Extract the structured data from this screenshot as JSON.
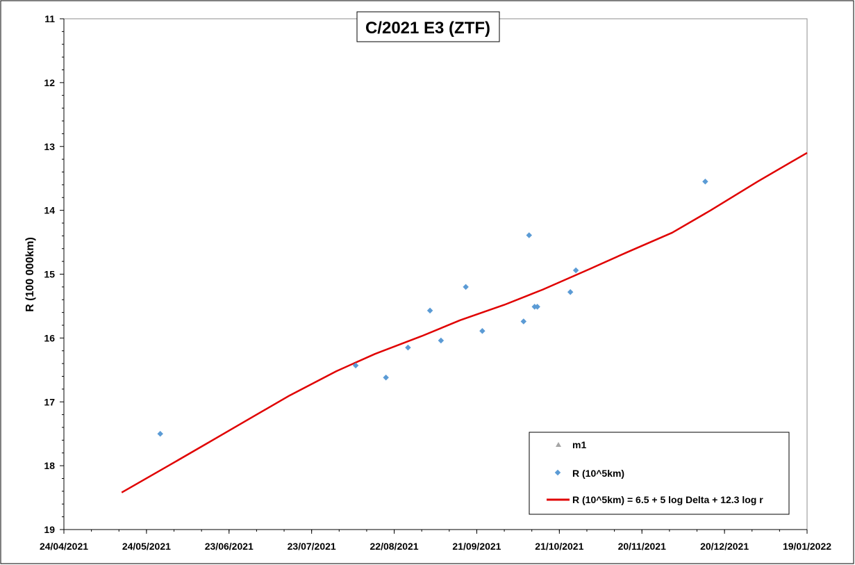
{
  "chart_data": {
    "type": "scatter",
    "title": "C/2021 E3 (ZTF)",
    "xlabel": "",
    "ylabel": "R (100 000km)",
    "y_inverted": true,
    "ylim": [
      11,
      19
    ],
    "yticks": [
      11,
      12,
      13,
      14,
      15,
      16,
      17,
      18,
      19
    ],
    "xlim": [
      "2021-04-24",
      "2022-01-19"
    ],
    "xticks": [
      "24/04/2021",
      "24/05/2021",
      "23/06/2021",
      "23/07/2021",
      "22/08/2021",
      "21/09/2021",
      "21/10/2021",
      "20/11/2021",
      "20/12/2021",
      "19/01/2022"
    ],
    "grid": false,
    "legend_position": "bottom-right",
    "colors": {
      "points": "#5b9bd5",
      "model": "#e00000",
      "m1": "#a5a5a5"
    },
    "series": [
      {
        "name": "m1",
        "marker": "triangle",
        "points": []
      },
      {
        "name": "R (10^5km)",
        "marker": "diamond",
        "points": [
          {
            "x": "2021-05-29",
            "y": 17.5
          },
          {
            "x": "2021-08-08",
            "y": 16.43
          },
          {
            "x": "2021-08-19",
            "y": 16.62
          },
          {
            "x": "2021-08-27",
            "y": 16.15
          },
          {
            "x": "2021-09-04",
            "y": 15.57
          },
          {
            "x": "2021-09-08",
            "y": 16.04
          },
          {
            "x": "2021-09-17",
            "y": 15.2
          },
          {
            "x": "2021-09-23",
            "y": 15.89
          },
          {
            "x": "2021-10-08",
            "y": 15.74
          },
          {
            "x": "2021-10-10",
            "y": 14.39
          },
          {
            "x": "2021-10-12",
            "y": 15.51
          },
          {
            "x": "2021-10-13",
            "y": 15.51
          },
          {
            "x": "2021-10-25",
            "y": 15.28
          },
          {
            "x": "2021-10-27",
            "y": 14.94
          },
          {
            "x": "2021-12-13",
            "y": 13.55
          }
        ]
      },
      {
        "name": "R (10^5km) = 6.5 + 5 log Delta + 12.3 log r",
        "marker": "line",
        "points": [
          {
            "x": "2021-05-15",
            "y": 18.42
          },
          {
            "x": "2021-06-01",
            "y": 18.0
          },
          {
            "x": "2021-06-15",
            "y": 17.65
          },
          {
            "x": "2021-07-01",
            "y": 17.25
          },
          {
            "x": "2021-07-15",
            "y": 16.9
          },
          {
            "x": "2021-08-01",
            "y": 16.52
          },
          {
            "x": "2021-08-15",
            "y": 16.25
          },
          {
            "x": "2021-09-01",
            "y": 15.97
          },
          {
            "x": "2021-09-15",
            "y": 15.72
          },
          {
            "x": "2021-10-01",
            "y": 15.48
          },
          {
            "x": "2021-10-15",
            "y": 15.24
          },
          {
            "x": "2021-11-01",
            "y": 14.92
          },
          {
            "x": "2021-11-15",
            "y": 14.65
          },
          {
            "x": "2021-12-01",
            "y": 14.35
          },
          {
            "x": "2021-12-15",
            "y": 14.0
          },
          {
            "x": "2022-01-01",
            "y": 13.55
          },
          {
            "x": "2022-01-19",
            "y": 13.1
          }
        ]
      }
    ]
  }
}
